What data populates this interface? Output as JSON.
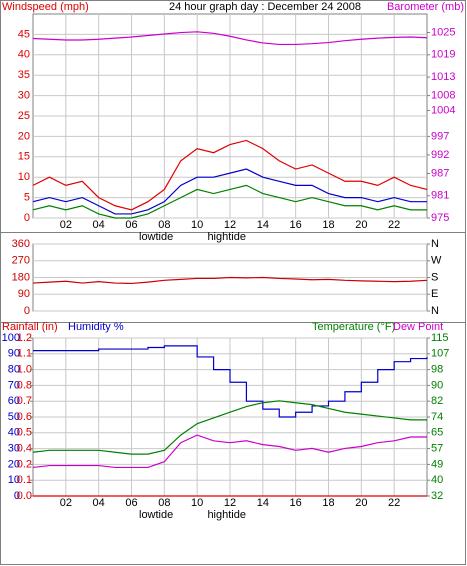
{
  "chart_data": [
    {
      "type": "line",
      "title": "24 hour graph day : December 24 2008",
      "ylabel": "Windspeed (mph)",
      "y2label": "Barometer (mb)",
      "x": [
        0,
        1,
        2,
        3,
        4,
        5,
        6,
        7,
        8,
        9,
        10,
        11,
        12,
        13,
        14,
        15,
        16,
        17,
        18,
        19,
        20,
        21,
        22,
        23,
        24
      ],
      "xlim": [
        0,
        24
      ],
      "xticks": [
        {
          "value": 2,
          "label": "02"
        },
        {
          "value": 4,
          "label": "04"
        },
        {
          "value": 6,
          "label": "06"
        },
        {
          "value": 8,
          "label": "08"
        },
        {
          "value": 10,
          "label": "10"
        },
        {
          "value": 12,
          "label": "12"
        },
        {
          "value": 14,
          "label": "14"
        },
        {
          "value": 16,
          "label": "16"
        },
        {
          "value": 18,
          "label": "18"
        },
        {
          "value": 20,
          "label": "20"
        },
        {
          "value": 22,
          "label": "22"
        }
      ],
      "annotations": [
        {
          "text": "lowtide",
          "x": 7.5
        },
        {
          "text": "hightide",
          "x": 11.8
        }
      ],
      "ylim": [
        0,
        50
      ],
      "yticks": [
        0,
        5,
        10,
        15,
        20,
        25,
        30,
        35,
        40,
        45
      ],
      "y2lim": [
        975,
        1030
      ],
      "y2ticks": [
        975,
        981,
        987,
        992,
        997,
        1004,
        1008,
        1013,
        1019,
        1025
      ],
      "grid": true,
      "series": [
        {
          "color": "#dd0000",
          "values": [
            8,
            10,
            8,
            9,
            5,
            3,
            2,
            4,
            7,
            14,
            17,
            16,
            18,
            19,
            17,
            14,
            12,
            13,
            11,
            9,
            9,
            8,
            10,
            8,
            7
          ]
        },
        {
          "color": "#008000",
          "values": [
            2,
            3,
            2,
            3,
            1,
            0,
            0,
            1,
            3,
            5,
            7,
            6,
            7,
            8,
            6,
            5,
            4,
            5,
            4,
            3,
            3,
            2,
            3,
            2,
            2
          ]
        },
        {
          "color": "#0000cc",
          "values": [
            4,
            5,
            4,
            5,
            3,
            1,
            1,
            2,
            4,
            8,
            10,
            10,
            11,
            12,
            10,
            9,
            8,
            8,
            6,
            5,
            5,
            4,
            5,
            4,
            4
          ]
        },
        {
          "color": "#cc00cc",
          "axis": "y2",
          "values": [
            1023.4,
            1023.2,
            1023,
            1023,
            1023.2,
            1023.5,
            1023.8,
            1024.2,
            1024.6,
            1025,
            1025.2,
            1024.8,
            1024,
            1023,
            1022.2,
            1021.8,
            1021.8,
            1022,
            1022.3,
            1022.8,
            1023.2,
            1023.5,
            1023.7,
            1023.8,
            1023.6
          ]
        }
      ]
    },
    {
      "type": "line",
      "x": [
        0,
        1,
        2,
        3,
        4,
        5,
        6,
        7,
        8,
        9,
        10,
        11,
        12,
        13,
        14,
        15,
        16,
        17,
        18,
        19,
        20,
        21,
        22,
        23,
        24
      ],
      "xlim": [
        0,
        24
      ],
      "ylim": [
        0,
        360
      ],
      "yticks": [
        0,
        90,
        180,
        270,
        360
      ],
      "y2lim": [
        0,
        360
      ],
      "y2ticks": [
        {
          "value": 0,
          "label": "N"
        },
        {
          "value": 90,
          "label": "E"
        },
        {
          "value": 180,
          "label": "S"
        },
        {
          "value": 270,
          "label": "W"
        },
        {
          "value": 360,
          "label": "N"
        }
      ],
      "grid": true,
      "series": [
        {
          "color": "#cc0000",
          "values": [
            150,
            155,
            160,
            150,
            158,
            150,
            148,
            155,
            165,
            170,
            175,
            175,
            180,
            178,
            180,
            175,
            172,
            168,
            170,
            165,
            162,
            160,
            158,
            160,
            165
          ]
        }
      ]
    },
    {
      "type": "line",
      "x": [
        0,
        1,
        2,
        3,
        4,
        5,
        6,
        7,
        8,
        9,
        10,
        11,
        12,
        13,
        14,
        15,
        16,
        17,
        18,
        19,
        20,
        21,
        22,
        23,
        24
      ],
      "xlim": [
        0,
        24
      ],
      "xticks": [
        {
          "value": 2,
          "label": "02"
        },
        {
          "value": 4,
          "label": "04"
        },
        {
          "value": 6,
          "label": "06"
        },
        {
          "value": 8,
          "label": "08"
        },
        {
          "value": 10,
          "label": "10"
        },
        {
          "value": 12,
          "label": "12"
        },
        {
          "value": 14,
          "label": "14"
        },
        {
          "value": 16,
          "label": "16"
        },
        {
          "value": 18,
          "label": "18"
        },
        {
          "value": 20,
          "label": "20"
        },
        {
          "value": 22,
          "label": "22"
        }
      ],
      "annotations": [
        {
          "text": "lowtide",
          "x": 7.5
        },
        {
          "text": "hightide",
          "x": 11.8
        }
      ],
      "ylim": [
        0,
        100
      ],
      "yticks": [
        0,
        10,
        20,
        30,
        40,
        50,
        60,
        70,
        80,
        90,
        100
      ],
      "rainlim": [
        0,
        1.2
      ],
      "rainticks": [
        {
          "value": 0,
          "label": "0.0"
        },
        {
          "value": 0.12,
          "label": "0.1"
        },
        {
          "value": 0.24,
          "label": "0.2"
        },
        {
          "value": 0.36,
          "label": "0.4"
        },
        {
          "value": 0.48,
          "label": "0.5"
        },
        {
          "value": 0.6,
          "label": "0.6"
        },
        {
          "value": 0.72,
          "label": "0.7"
        },
        {
          "value": 0.84,
          "label": "0.8"
        },
        {
          "value": 0.96,
          "label": "1.0"
        },
        {
          "value": 1.08,
          "label": "1.1"
        },
        {
          "value": 1.2,
          "label": "1.2"
        }
      ],
      "y2lim": [
        32,
        115
      ],
      "y2ticks": [
        32,
        {
          "value": 40.3,
          "label": "40"
        },
        {
          "value": 48.6,
          "label": "49"
        },
        {
          "value": 56.9,
          "label": "57"
        },
        {
          "value": 65.2,
          "label": "65"
        },
        {
          "value": 73.5,
          "label": "74"
        },
        {
          "value": 81.8,
          "label": "82"
        },
        {
          "value": 90.1,
          "label": "90"
        },
        {
          "value": 98.4,
          "label": "98"
        },
        {
          "value": 106.7,
          "label": "107"
        },
        115
      ],
      "grid": true,
      "series": [
        {
          "name": "Rainfall (in)",
          "color": "#dd0000",
          "axis": "rain",
          "values": [
            0,
            0,
            0,
            0,
            0,
            0,
            0,
            0,
            0,
            0,
            0,
            0,
            0,
            0,
            0,
            0,
            0,
            0,
            0,
            0,
            0,
            0,
            0,
            0,
            0
          ]
        },
        {
          "name": "Humidity %",
          "color": "#0000cc",
          "step": true,
          "values": [
            92,
            92,
            92,
            92,
            93,
            93,
            93,
            94,
            95,
            95,
            88,
            80,
            72,
            60,
            55,
            50,
            53,
            57,
            60,
            66,
            72,
            80,
            85,
            87,
            88
          ]
        },
        {
          "name": "Temperature (°F)",
          "color": "#008000",
          "axis": "y2",
          "values": [
            55,
            56,
            56,
            56,
            56,
            55,
            54,
            54,
            56,
            64,
            70,
            73,
            76,
            79,
            81,
            82,
            81,
            80,
            78,
            76,
            75,
            74,
            73,
            72,
            72
          ]
        },
        {
          "name": "Dew Point",
          "color": "#cc00cc",
          "axis": "y2",
          "values": [
            47,
            48,
            48,
            48,
            48,
            47,
            47,
            47,
            50,
            60,
            64,
            61,
            60,
            61,
            59,
            58,
            56,
            57,
            55,
            57,
            58,
            60,
            61,
            63,
            63
          ]
        }
      ]
    }
  ]
}
